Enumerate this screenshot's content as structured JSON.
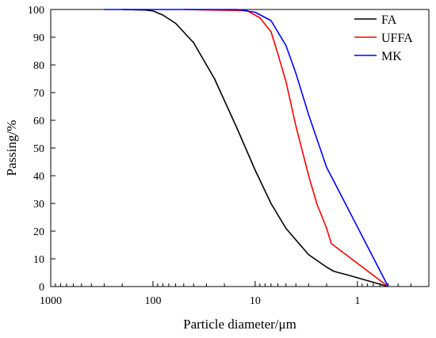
{
  "chart_data": {
    "type": "line",
    "title": "",
    "xlabel": "Particle diameter/μm",
    "ylabel": "Passing/%",
    "xscale": "log",
    "x_reversed": true,
    "xlim": [
      1000,
      0.2
    ],
    "ylim": [
      0,
      100
    ],
    "xticks": [
      1000,
      100,
      10,
      1
    ],
    "xtick_labels": [
      "1000",
      "100",
      "10",
      "1"
    ],
    "yticks": [
      0,
      10,
      20,
      30,
      40,
      50,
      60,
      70,
      80,
      90,
      100
    ],
    "ytick_labels": [
      "0",
      "10",
      "20",
      "30",
      "40",
      "50",
      "60",
      "70",
      "80",
      "90",
      "100"
    ],
    "grid": false,
    "legend": "top-right",
    "series": [
      {
        "name": "FA",
        "color": "#000000",
        "x": [
          200,
          120,
          100,
          80,
          60,
          40,
          25,
          15,
          10,
          7,
          5,
          3,
          2,
          1.7,
          1.2,
          0.5
        ],
        "y": [
          100,
          99.8,
          99.5,
          98,
          95,
          88,
          75,
          57,
          42,
          30,
          21,
          11.5,
          7,
          5.5,
          4,
          0
        ]
      },
      {
        "name": "UFFA",
        "color": "#ff0000",
        "x": [
          50,
          12,
          9,
          7,
          6,
          5,
          4,
          3,
          2.5,
          2,
          1.8,
          0.5
        ],
        "y": [
          100,
          99.6,
          97,
          92,
          84,
          74,
          58,
          40,
          30,
          21,
          15.5,
          0
        ]
      },
      {
        "name": "MK",
        "color": "#0000ff",
        "x": [
          300,
          15,
          10,
          7,
          5,
          4,
          3,
          2,
          1.7,
          0.5
        ],
        "y": [
          100,
          100,
          99,
          96,
          87,
          77,
          62,
          43,
          38,
          0
        ]
      }
    ]
  }
}
